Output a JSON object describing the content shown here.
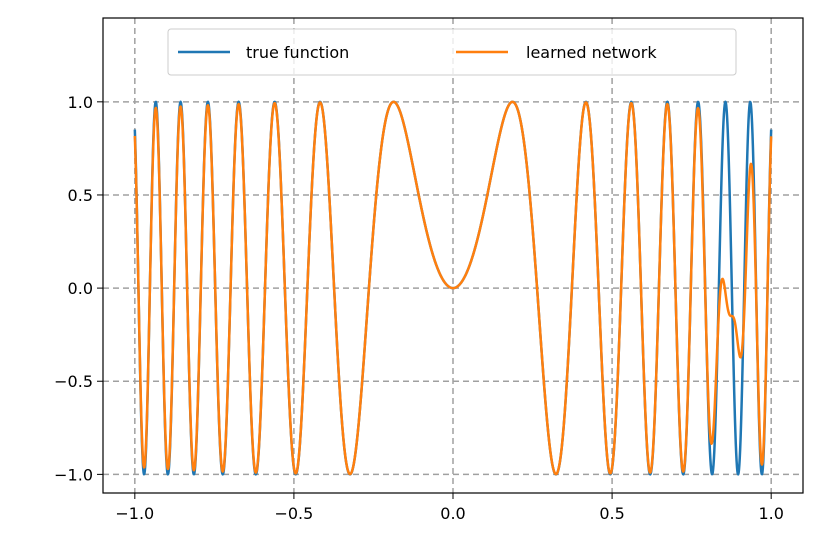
{
  "chart_data": {
    "type": "line",
    "title": "",
    "xlabel": "",
    "ylabel": "",
    "xlim": [
      -1.1,
      1.1
    ],
    "ylim": [
      -1.1,
      1.45
    ],
    "grid": true,
    "legend_placement": "top-center",
    "x_ticks": [
      -1.0,
      -0.5,
      0.0,
      0.5,
      1.0
    ],
    "x_tick_labels": [
      "−1.0",
      "−0.5",
      "0.0",
      "0.5",
      "1.0"
    ],
    "y_ticks": [
      -1.0,
      -0.5,
      0.0,
      0.5,
      1.0
    ],
    "y_tick_labels": [
      "−1.0",
      "−0.5",
      "0.0",
      "0.5",
      "1.0"
    ],
    "series": [
      {
        "name": "true function",
        "color": "#1f77b4",
        "description": "y = sin(45 x^2), x in [-1, 1], sampled at 1600 points",
        "x_range": [
          -1.0,
          1.0
        ],
        "y_range": [
          -1.0,
          1.0
        ]
      },
      {
        "name": "learned network",
        "color": "#ff7f0e",
        "description": "approximation of the true function; matches it well for |x| < ~0.8 with slightly lower amplitude near the edges, deviates for x in roughly [0.8, 0.95] (dip to about -0.25 near x = 0.88)",
        "x_range": [
          -1.0,
          1.0
        ],
        "y_range": [
          -1.0,
          1.0
        ]
      }
    ]
  }
}
